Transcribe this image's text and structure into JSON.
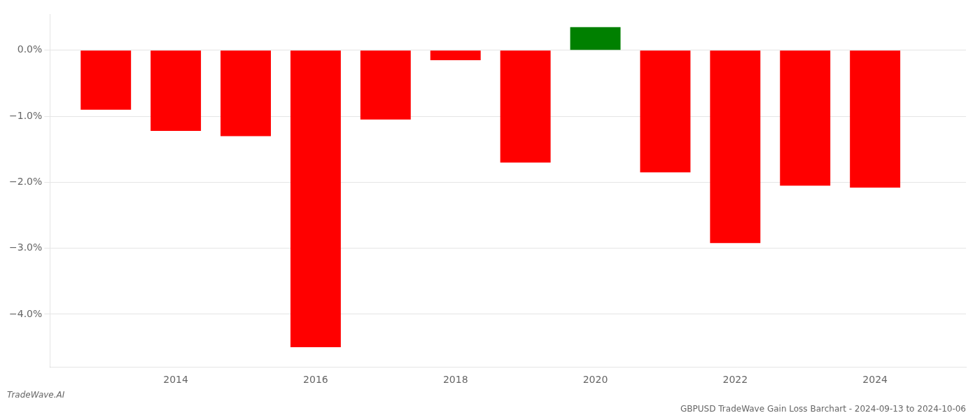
{
  "chart_data": {
    "type": "bar",
    "title": "GBPUSD TradeWave Gain Loss Barchart - 2024-09-13 to 2024-10-06",
    "annotations": [
      "TradeWave.AI"
    ],
    "x": [
      2013,
      2014,
      2015,
      2016,
      2017,
      2018,
      2019,
      2020,
      2021,
      2022,
      2023,
      2024
    ],
    "values": [
      -0.9,
      -1.22,
      -1.3,
      -4.5,
      -1.05,
      -0.15,
      -1.7,
      0.35,
      -1.85,
      -2.92,
      -2.05,
      -2.08
    ],
    "colors": [
      "#ff0000",
      "#ff0000",
      "#ff0000",
      "#ff0000",
      "#ff0000",
      "#ff0000",
      "#ff0000",
      "#008000",
      "#ff0000",
      "#ff0000",
      "#ff0000",
      "#ff0000"
    ],
    "xlim": [
      2012.2,
      2025.3
    ],
    "xticks": [
      2014,
      2016,
      2018,
      2020,
      2022,
      2024
    ],
    "ylim": [
      -4.8,
      0.55
    ],
    "yticks": [
      {
        "value": 0.0,
        "label": "0.0%"
      },
      {
        "value": -1.0,
        "label": "−1.0%"
      },
      {
        "value": -2.0,
        "label": "−2.0%"
      },
      {
        "value": -3.0,
        "label": "−3.0%"
      },
      {
        "value": -4.0,
        "label": "−4.0%"
      }
    ],
    "grid": true
  }
}
